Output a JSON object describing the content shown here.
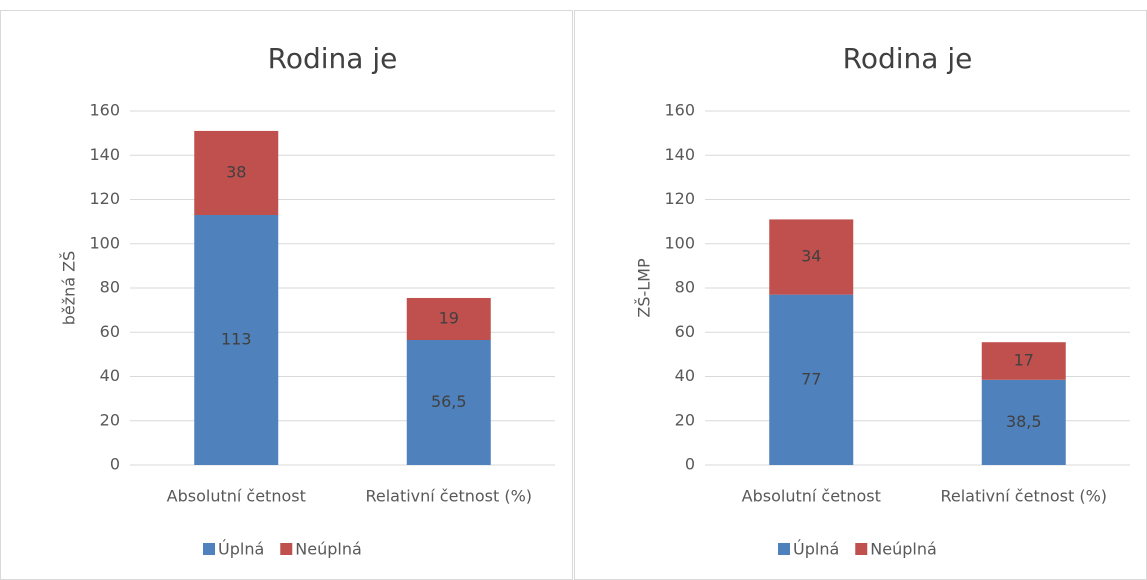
{
  "chart_data": [
    {
      "type": "bar",
      "stacked": true,
      "title": "Rodina je",
      "y_label": "běžná ZŠ",
      "categories": [
        "Absolutní četnost",
        "Relativní četnost (%)"
      ],
      "series": [
        {
          "name": "Úplná",
          "color": "#4f81bd",
          "values": [
            113,
            56.5
          ],
          "value_labels": [
            "113",
            "56,5"
          ]
        },
        {
          "name": "Neúplná",
          "color": "#c0504d",
          "values": [
            38,
            19
          ]
        }
      ],
      "ylim": [
        0,
        160
      ],
      "yticks": [
        0,
        20,
        40,
        60,
        80,
        100,
        120,
        140,
        160
      ],
      "grid": true,
      "legend": "bottom"
    },
    {
      "type": "bar",
      "stacked": true,
      "title": "Rodina je",
      "y_label": "ZŠ-LMP",
      "categories": [
        "Absolutní četnost",
        "Relativní četnost (%)"
      ],
      "series": [
        {
          "name": "Úplná",
          "color": "#4f81bd",
          "values": [
            77,
            38.5
          ],
          "value_labels": [
            "77",
            "38,5"
          ]
        },
        {
          "name": "Neúplná",
          "color": "#c0504d",
          "values": [
            34,
            17
          ]
        }
      ],
      "ylim": [
        0,
        160
      ],
      "yticks": [
        0,
        20,
        40,
        60,
        80,
        100,
        120,
        140,
        160
      ],
      "grid": true,
      "legend": "bottom"
    }
  ]
}
